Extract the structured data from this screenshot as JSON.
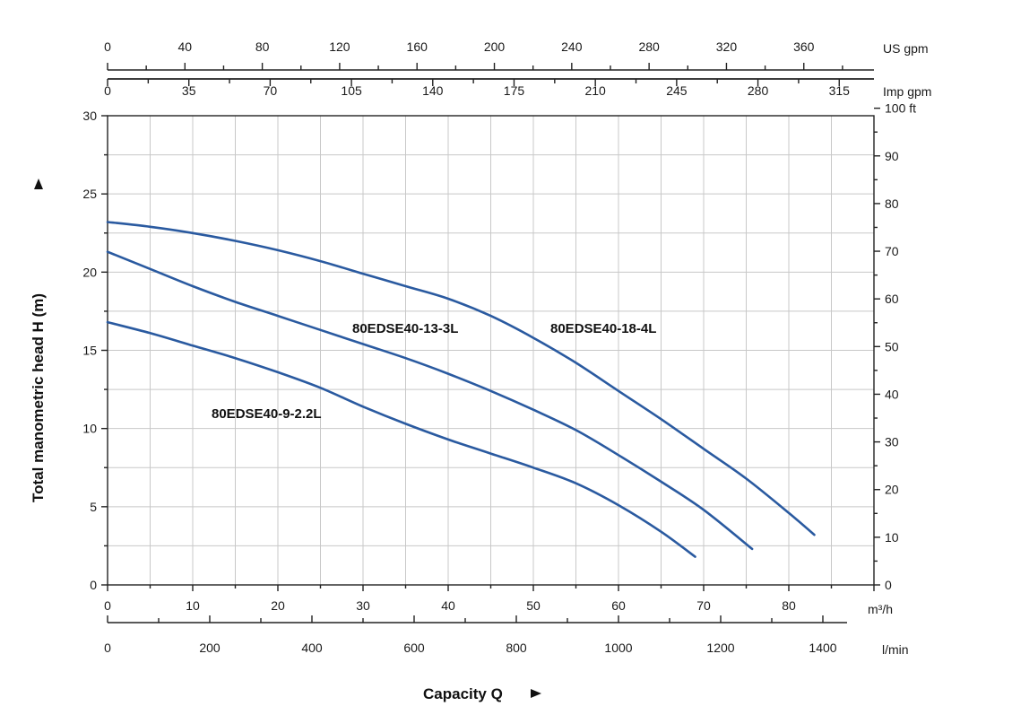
{
  "chart_data": {
    "type": "line",
    "xlabel": "Capacity Q",
    "ylabel": "Total manometric head H (m)",
    "xlim": [
      0,
      90
    ],
    "ylim": [
      0,
      30
    ],
    "grid": true,
    "x_unit": "m³/h",
    "x_ticks": [
      0,
      10,
      20,
      30,
      40,
      50,
      60,
      70,
      80
    ],
    "y_ticks": [
      0,
      5,
      10,
      15,
      20,
      25,
      30
    ],
    "secondary_axes": {
      "us_gpm": {
        "unit": "US gpm",
        "ticks": [
          0,
          40,
          80,
          120,
          160,
          200,
          240,
          280,
          320,
          360
        ]
      },
      "imp_gpm": {
        "unit": "Imp gpm",
        "ticks": [
          0,
          35,
          70,
          105,
          140,
          175,
          210,
          245,
          280,
          315
        ]
      },
      "l_min": {
        "unit": "l/min",
        "ticks": [
          0,
          200,
          400,
          600,
          800,
          1000,
          1200,
          1400
        ]
      },
      "ft": {
        "unit": "ft",
        "ticks": [
          0,
          10,
          20,
          30,
          40,
          50,
          60,
          70,
          80,
          90,
          100
        ],
        "top_label": "100 ft"
      }
    },
    "series": [
      {
        "name": "80EDSE40-18-4L",
        "color": "#2a5aa0",
        "x": [
          0,
          5,
          10,
          15,
          20,
          25,
          30,
          35,
          40,
          45,
          50,
          55,
          60,
          65,
          70,
          75,
          80,
          83
        ],
        "y": [
          23.2,
          22.9,
          22.5,
          22.0,
          21.4,
          20.7,
          19.9,
          19.1,
          18.3,
          17.2,
          15.8,
          14.2,
          12.4,
          10.6,
          8.7,
          6.8,
          4.6,
          3.2
        ]
      },
      {
        "name": "80EDSE40-13-3L",
        "color": "#2a5aa0",
        "x": [
          0,
          5,
          10,
          15,
          20,
          25,
          30,
          35,
          40,
          45,
          50,
          55,
          60,
          65,
          70,
          75.7
        ],
        "y": [
          21.3,
          20.2,
          19.1,
          18.1,
          17.2,
          16.3,
          15.4,
          14.5,
          13.5,
          12.4,
          11.2,
          9.9,
          8.3,
          6.6,
          4.8,
          2.3
        ]
      },
      {
        "name": "80EDSE40-9-2.2L",
        "color": "#2a5aa0",
        "x": [
          0,
          5,
          10,
          15,
          20,
          25,
          30,
          35,
          40,
          45,
          50,
          55,
          60,
          65,
          69
        ],
        "y": [
          16.8,
          16.1,
          15.3,
          14.5,
          13.6,
          12.6,
          11.4,
          10.3,
          9.3,
          8.4,
          7.5,
          6.5,
          5.1,
          3.4,
          1.8
        ]
      }
    ]
  }
}
